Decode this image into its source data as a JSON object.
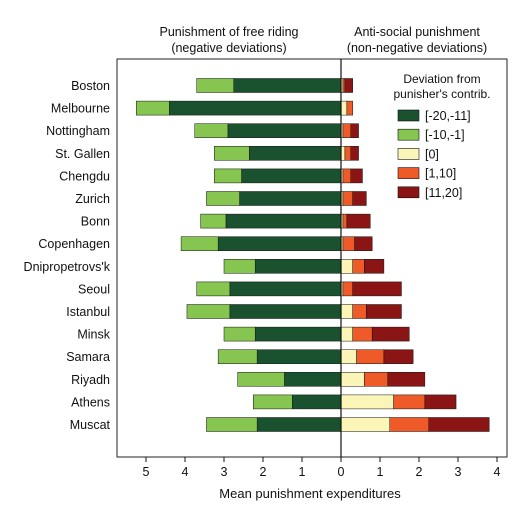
{
  "chart_data": {
    "type": "bar",
    "orientation": "horizontal-diverging",
    "header_left": [
      "Punishment of free riding",
      "(negative deviations)"
    ],
    "header_right": [
      "Anti-social punishment",
      "(non-negative deviations)"
    ],
    "xlabel": "Mean punishment expenditures",
    "xlim": [
      -5.6,
      4.1
    ],
    "x_tick_values": [
      -5,
      -4,
      -3,
      -2,
      -1,
      0,
      1,
      2,
      3,
      4
    ],
    "x_tick_labels": [
      "5",
      "4",
      "3",
      "2",
      "1",
      "0",
      "1",
      "2",
      "3",
      "4"
    ],
    "legend_title": [
      "Deviation from",
      "punisher's contrib."
    ],
    "legend_placement": "top-right",
    "categories": [
      "Boston",
      "Melbourne",
      "Nottingham",
      "St. Gallen",
      "Chengdu",
      "Zurich",
      "Bonn",
      "Copenhagen",
      "Dnipropetrovs'k",
      "Seoul",
      "Istanbul",
      "Minsk",
      "Samara",
      "Riyadh",
      "Athens",
      "Muscat"
    ],
    "series": [
      {
        "name": "[-20,-11]",
        "color": "#1a5230",
        "side": "left",
        "values": [
          2.75,
          4.4,
          2.9,
          2.35,
          2.55,
          2.6,
          2.95,
          3.15,
          2.2,
          2.85,
          2.85,
          2.2,
          2.15,
          1.45,
          1.25,
          2.15
        ]
      },
      {
        "name": "[-10,-1]",
        "color": "#86c550",
        "side": "left",
        "values": [
          0.95,
          0.85,
          0.85,
          0.9,
          0.7,
          0.85,
          0.65,
          0.95,
          0.8,
          0.85,
          1.1,
          0.8,
          1.0,
          1.2,
          1.0,
          1.3
        ]
      },
      {
        "name": "[0]",
        "color": "#fbf6b8",
        "side": "right",
        "values": [
          0.05,
          0.15,
          0.05,
          0.1,
          0.05,
          0.05,
          0.05,
          0.05,
          0.3,
          0.05,
          0.3,
          0.3,
          0.4,
          0.6,
          1.35,
          1.25
        ]
      },
      {
        "name": "[1,10]",
        "color": "#ee5a28",
        "side": "right",
        "values": [
          0.05,
          0.15,
          0.2,
          0.15,
          0.2,
          0.25,
          0.1,
          0.3,
          0.3,
          0.25,
          0.35,
          0.5,
          0.7,
          0.6,
          0.8,
          1.0
        ]
      },
      {
        "name": "[11,20]",
        "color": "#8b1515",
        "side": "right",
        "values": [
          0.2,
          0.0,
          0.2,
          0.2,
          0.3,
          0.35,
          0.6,
          0.45,
          0.5,
          1.25,
          0.9,
          0.95,
          0.75,
          0.95,
          0.8,
          1.55
        ]
      }
    ]
  }
}
